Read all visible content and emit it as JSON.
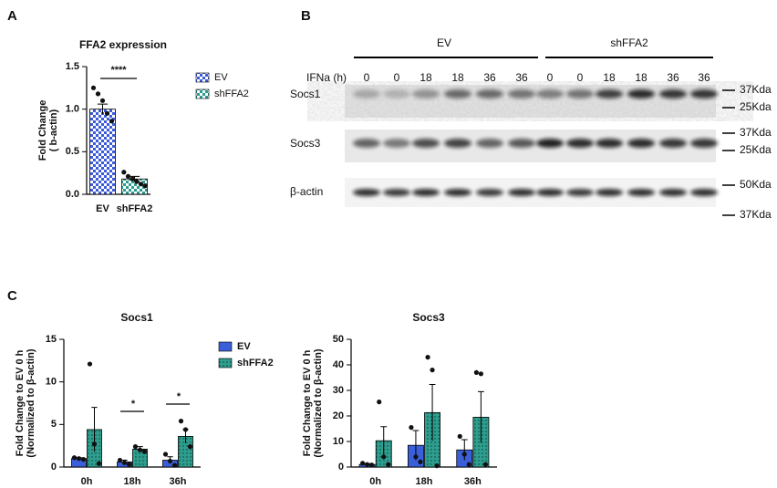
{
  "panel_labels": [
    "A",
    "B",
    "C"
  ],
  "chart_data": [
    {
      "type": "bar",
      "title": "FFA2 expression",
      "ylabel": [
        "Fold Change",
        "( b-actin)"
      ],
      "categories": [
        "EV",
        "shFFA2"
      ],
      "values": [
        1.0,
        0.18
      ],
      "errors": [
        0.06,
        0.03
      ],
      "points": [
        [
          1.25,
          1.18,
          1.1,
          0.95,
          0.86
        ],
        [
          0.26,
          0.21,
          0.18,
          0.15,
          0.12,
          0.1
        ]
      ],
      "colors": [
        "#3b5bdb",
        "#2a9d8f"
      ],
      "fill_styles": [
        "checker",
        "checker"
      ],
      "ylim": [
        0,
        1.5
      ],
      "yticks": [
        {
          "value": 0,
          "label": "0.0"
        },
        {
          "value": 0.5,
          "label": "0.5"
        },
        {
          "value": 1.0,
          "label": "1.0"
        },
        {
          "value": 1.5,
          "label": "1.5"
        }
      ],
      "annotations": [
        "****"
      ],
      "legend": true
    },
    {
      "type": "grouped-bar",
      "title": "Socs1",
      "ylabel": [
        "Fold Change to EV 0 h",
        "(Normalized to β-actin)"
      ],
      "categories": [
        "0h",
        "18h",
        "36h"
      ],
      "series": [
        {
          "name": "EV",
          "color": "#3a5fd9",
          "fill_style": "solid",
          "values": [
            1.0,
            0.6,
            0.8
          ],
          "errors": [
            0.1,
            0.2,
            0.4
          ],
          "points": [
            [
              1.1,
              1.0,
              0.9
            ],
            [
              0.8,
              0.5,
              0.3
            ],
            [
              1.5,
              0.7,
              0.2
            ]
          ]
        },
        {
          "name": "shFFA2",
          "color": "#2e9e8e",
          "fill_style": "dots",
          "values": [
            4.4,
            2.1,
            3.6
          ],
          "errors": [
            2.6,
            0.3,
            0.8
          ],
          "points": [
            [
              12.1,
              2.7,
              0.4
            ],
            [
              2.4,
              2.0,
              1.8
            ],
            [
              5.4,
              4.4,
              2.4
            ]
          ]
        }
      ],
      "ylim": [
        0,
        15
      ],
      "yticks": [
        0,
        5,
        10,
        15
      ],
      "annotations": [
        "*",
        "*"
      ],
      "legend": true
    },
    {
      "type": "grouped-bar",
      "title": "Socs3",
      "ylabel": [
        "Fold Change to EV 0 h",
        "(Normalized to β-actin)"
      ],
      "categories": [
        "0h",
        "18h",
        "36h"
      ],
      "series": [
        {
          "name": "EV",
          "color": "#3a5fd9",
          "fill_style": "solid",
          "values": [
            1.0,
            8.5,
            6.7
          ],
          "errors": [
            0.3,
            5.8,
            4.0
          ],
          "points": [
            [
              1.5,
              1.0,
              0.8
            ],
            [
              15.5,
              4.0,
              2.0
            ],
            [
              12.0,
              5.0,
              1.0
            ]
          ]
        },
        {
          "name": "shFFA2",
          "color": "#2e9e8e",
          "fill_style": "dots",
          "values": [
            10.3,
            21.3,
            19.5
          ],
          "errors": [
            5.5,
            11.0,
            10.0
          ],
          "points": [
            [
              25.5,
              4.0,
              1.0
            ],
            [
              43.0,
              38.0,
              0.5
            ],
            [
              37.0,
              36.5,
              1.0
            ]
          ]
        }
      ],
      "ylim": [
        0,
        50
      ],
      "yticks": [
        0,
        10,
        20,
        30,
        40,
        50
      ],
      "annotations": [],
      "legend": false
    }
  ],
  "blot": {
    "groups": [
      "EV",
      "shFFA2"
    ],
    "treatment_label": "IFNa (h)",
    "lanes": [
      "0",
      "0",
      "18",
      "18",
      "36",
      "36",
      "0",
      "0",
      "18",
      "18",
      "36",
      "36"
    ],
    "rows": [
      "Socs1",
      "Socs3",
      "β-actin"
    ],
    "markers": [
      "37Kda",
      "25Kda",
      "37Kda",
      "25Kda",
      "50Kda",
      "37Kda"
    ]
  }
}
